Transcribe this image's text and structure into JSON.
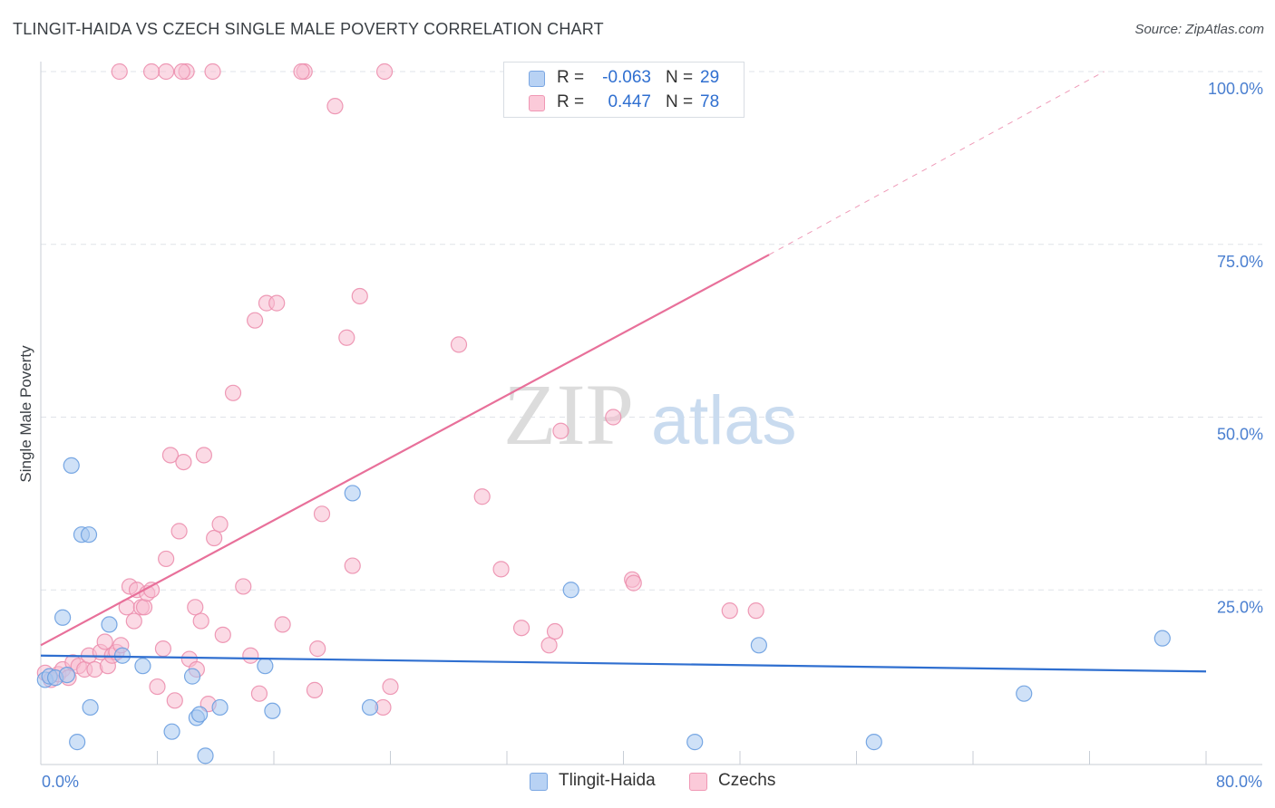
{
  "header": {
    "title": "TLINGIT-HAIDA VS CZECH SINGLE MALE POVERTY CORRELATION CHART",
    "source": "Source: ZipAtlas.com"
  },
  "watermark": {
    "zip": "ZIP",
    "atlas": "atlas"
  },
  "legend": {
    "r_label": "R =",
    "n_label": "N =",
    "rows": [
      {
        "name": "Tlingit-Haida",
        "r": "-0.063",
        "n": "29"
      },
      {
        "name": "Czechs",
        "r": "0.447",
        "n": "78"
      }
    ]
  },
  "colors": {
    "tlingit_fill": "#a8c8f0",
    "tlingit_stroke": "#6a9ee0",
    "tlingit_line": "#2f6fd0",
    "czech_fill": "#f8bcd0",
    "czech_stroke": "#ec8fae",
    "czech_line": "#e8709a",
    "grid": "#dfe3e8",
    "tick_text": "#4a7fd0"
  },
  "chart_data": {
    "type": "scatter",
    "title": "TLINGIT-HAIDA VS CZECH SINGLE MALE POVERTY CORRELATION CHART",
    "xlabel": "",
    "ylabel": "Single Male Poverty",
    "xlim": [
      0,
      80
    ],
    "ylim": [
      0,
      100
    ],
    "x_tick_labels": [
      "0.0%",
      "80.0%"
    ],
    "y_tick_labels": [
      "100.0%",
      "75.0%",
      "50.0%",
      "25.0%"
    ],
    "y_ticks": [
      100,
      75,
      50,
      25
    ],
    "series": [
      {
        "name": "Tlingit-Haida",
        "x": [
          0.3,
          0.6,
          1.0,
          1.5,
          1.8,
          2.1,
          2.5,
          2.8,
          3.3,
          3.4,
          4.7,
          5.6,
          7.0,
          9.0,
          10.4,
          10.7,
          10.9,
          11.3,
          12.3,
          15.4,
          15.9,
          21.4,
          22.6,
          36.4,
          44.9,
          49.3,
          57.2,
          67.5,
          77.0
        ],
        "y": [
          12.0,
          12.5,
          12.3,
          21.0,
          12.7,
          43.0,
          3.0,
          33.0,
          33.0,
          8.0,
          20.0,
          15.5,
          14.0,
          4.5,
          12.5,
          6.5,
          7.0,
          1.0,
          8.0,
          14.0,
          7.5,
          39.0,
          8.0,
          25.0,
          3.0,
          17.0,
          3.0,
          10.0,
          18.0
        ]
      },
      {
        "name": "Czechs",
        "x": [
          0.3,
          0.7,
          1.2,
          1.5,
          1.9,
          2.2,
          2.6,
          3.0,
          3.3,
          3.7,
          4.1,
          4.4,
          4.6,
          4.9,
          5.2,
          5.5,
          5.9,
          6.1,
          6.4,
          6.6,
          6.9,
          7.1,
          7.3,
          7.6,
          8.0,
          8.4,
          8.6,
          8.9,
          9.2,
          9.5,
          9.8,
          10.2,
          10.6,
          10.7,
          11.0,
          11.2,
          11.5,
          11.9,
          12.3,
          12.5,
          13.2,
          13.9,
          14.4,
          14.7,
          15.0,
          15.5,
          16.2,
          16.6,
          18.8,
          19.0,
          19.3,
          20.2,
          21.0,
          21.4,
          21.9,
          23.5,
          24.0,
          28.7,
          30.3,
          31.6,
          33.0,
          34.9,
          35.3,
          35.7,
          39.3,
          40.6,
          40.7,
          47.3,
          49.1,
          18.1,
          17.9,
          23.6,
          11.8,
          10.0,
          9.7,
          8.6,
          7.6,
          5.4
        ],
        "y": [
          13.0,
          12.0,
          12.8,
          13.5,
          12.3,
          14.5,
          14.0,
          13.5,
          15.5,
          13.5,
          16.0,
          17.5,
          14.0,
          15.5,
          16.0,
          17.0,
          22.5,
          25.5,
          20.5,
          25.0,
          22.5,
          22.5,
          24.5,
          25.0,
          11.0,
          16.5,
          29.5,
          44.5,
          9.0,
          33.5,
          43.5,
          15.0,
          22.5,
          13.5,
          20.5,
          44.5,
          8.5,
          32.5,
          34.5,
          18.5,
          53.5,
          25.5,
          15.5,
          64.0,
          10.0,
          66.5,
          66.5,
          20.0,
          10.5,
          16.5,
          36.0,
          95.0,
          61.5,
          28.5,
          67.5,
          8.0,
          11.0,
          60.5,
          38.5,
          28.0,
          19.5,
          17.0,
          19.0,
          48.0,
          50.0,
          26.5,
          26.0,
          22.0,
          22.0,
          100.0,
          100.0,
          100.0,
          100.0,
          100.0,
          100.0,
          100.0,
          100.0,
          100.0
        ]
      }
    ],
    "trend_lines": [
      {
        "name": "Tlingit-Haida",
        "x": [
          0,
          80
        ],
        "y": [
          15.5,
          13.2
        ],
        "style": "solid"
      },
      {
        "name": "Czechs",
        "x": [
          0,
          50
        ],
        "y": [
          17.0,
          73.5
        ],
        "style": "solid"
      },
      {
        "name": "Czechs-extrapolated",
        "x": [
          50,
          73
        ],
        "y": [
          73.5,
          100.0
        ],
        "style": "dashed"
      }
    ]
  }
}
